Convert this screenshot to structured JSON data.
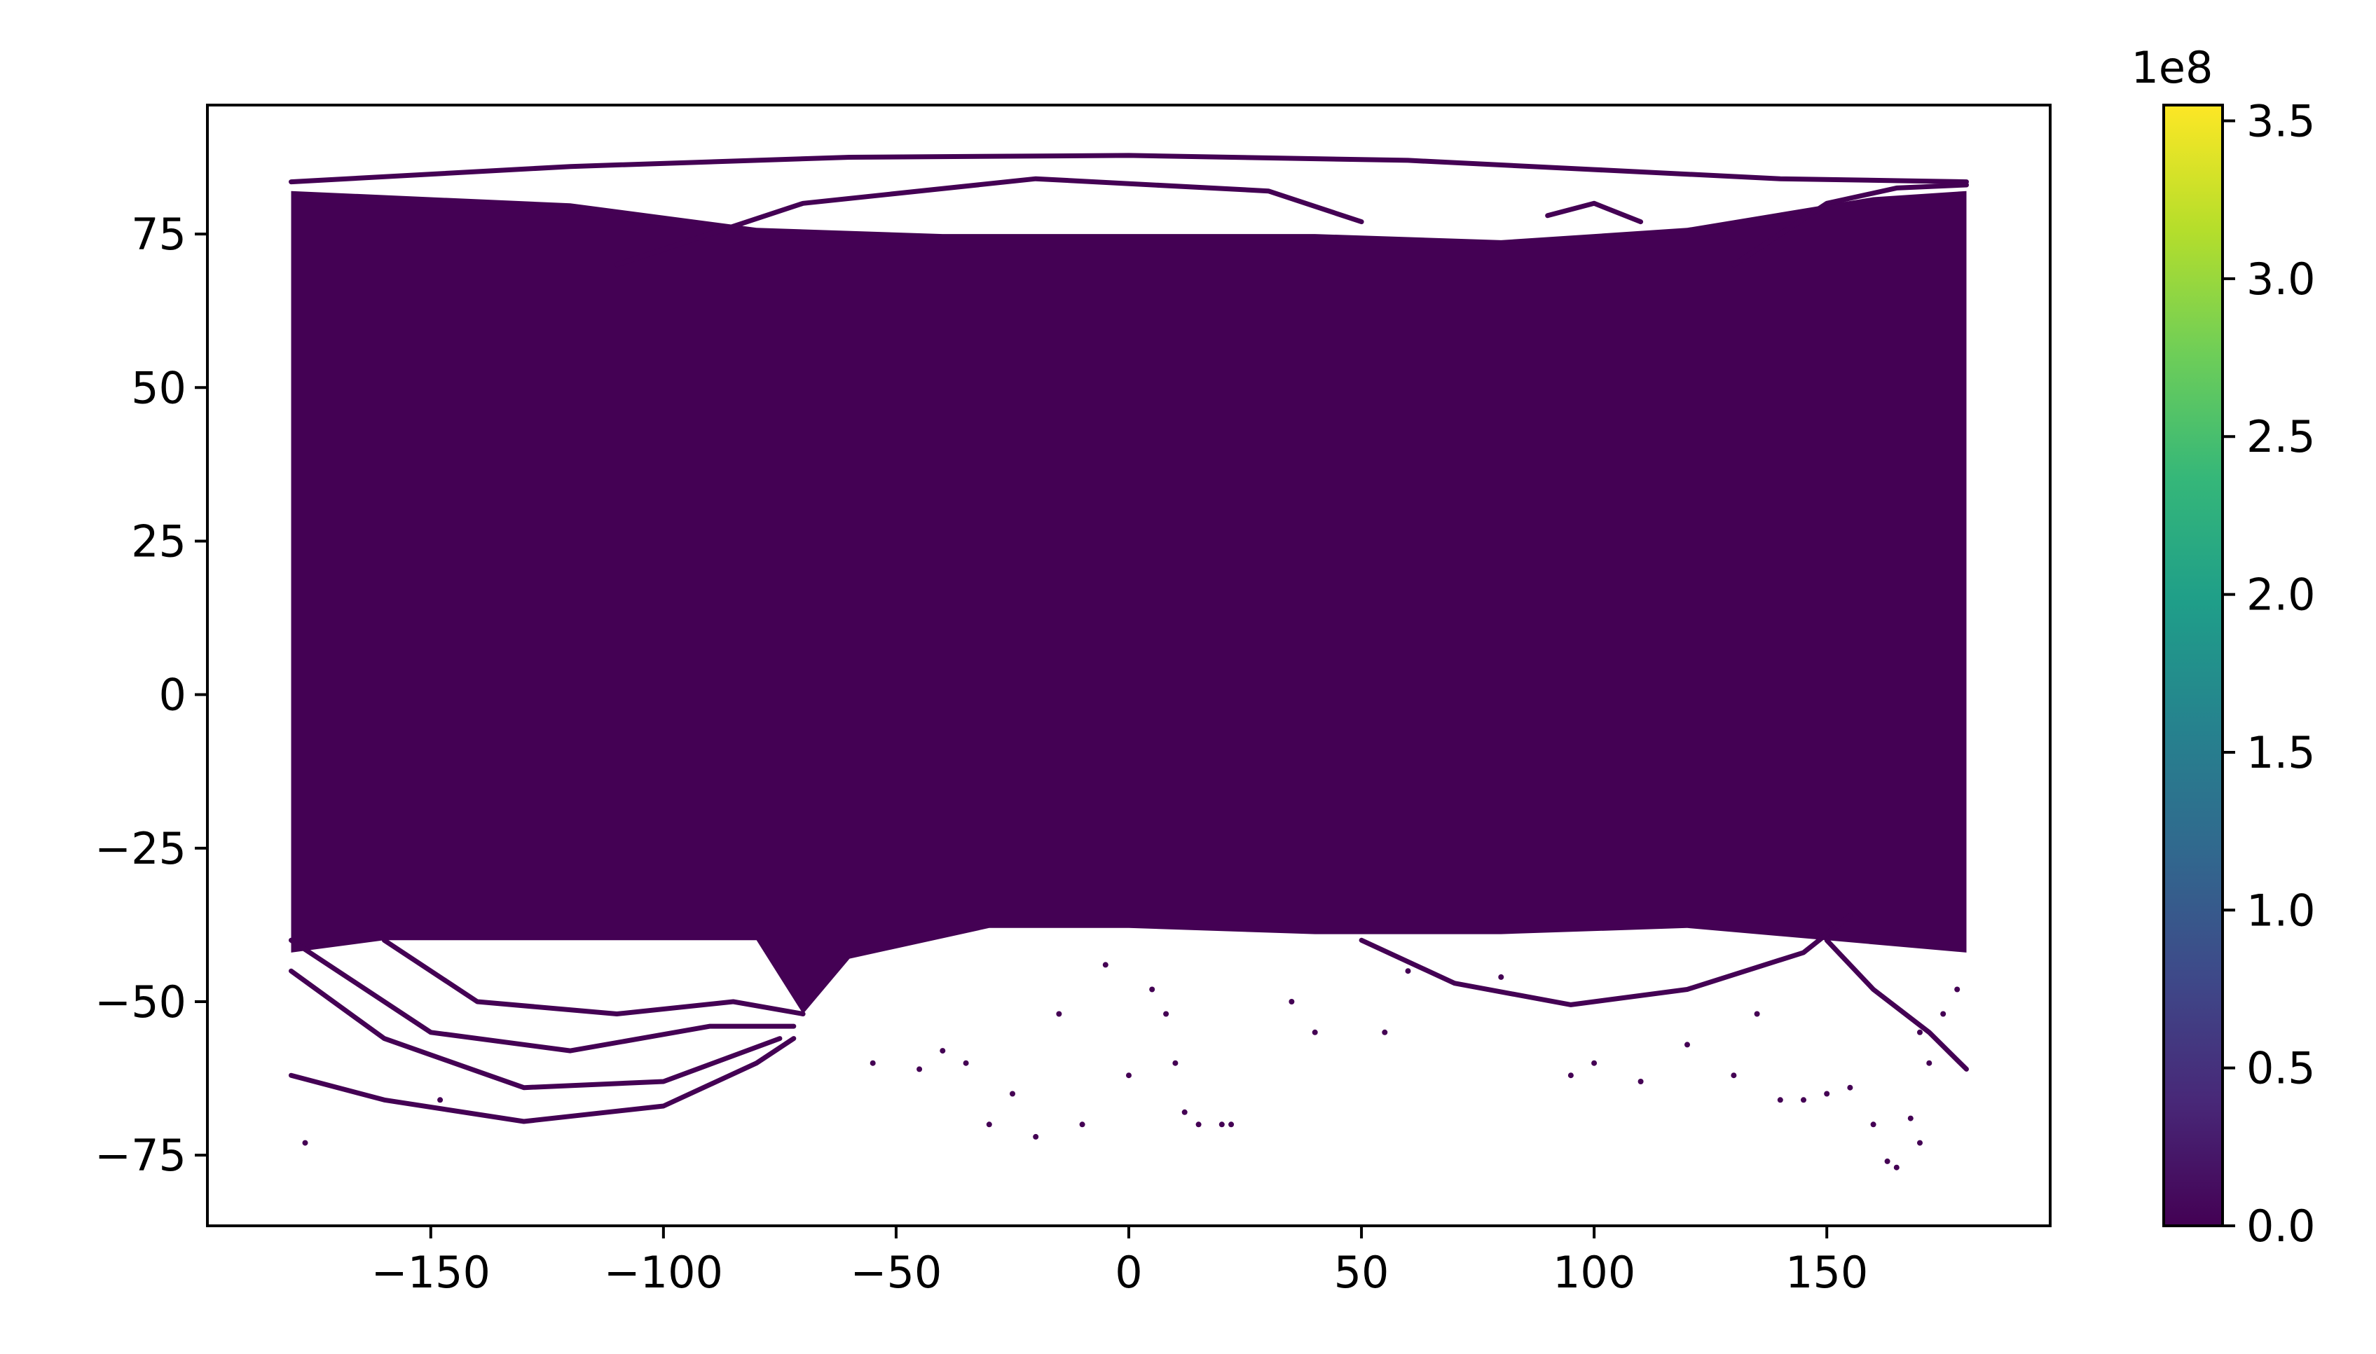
{
  "chart_data": {
    "type": "scatter",
    "title": "",
    "xlabel": "",
    "ylabel": "",
    "xlim": [
      -198,
      198
    ],
    "ylim": [
      -86.5,
      96
    ],
    "x_ticks": [
      -150,
      -100,
      -50,
      0,
      50,
      100,
      150
    ],
    "x_tick_labels": [
      "−150",
      "−100",
      "−50",
      "0",
      "50",
      "100",
      "150"
    ],
    "y_ticks": [
      -75,
      -50,
      -25,
      0,
      25,
      50,
      75
    ],
    "y_tick_labels": [
      "−75",
      "−50",
      "−25",
      "0",
      "25",
      "50",
      "75"
    ],
    "grid": false,
    "marker_color": "#440154",
    "dense_extent": {
      "x": [
        -180,
        180
      ],
      "y_top_edge": [
        [
          -180,
          82
        ],
        [
          -120,
          80
        ],
        [
          -80,
          76
        ],
        [
          -40,
          75
        ],
        [
          0,
          75
        ],
        [
          40,
          75
        ],
        [
          80,
          74
        ],
        [
          120,
          76
        ],
        [
          160,
          81
        ],
        [
          180,
          82
        ]
      ],
      "y_bottom_edge": [
        [
          180,
          -42
        ],
        [
          150,
          -40
        ],
        [
          120,
          -38
        ],
        [
          80,
          -39
        ],
        [
          40,
          -39
        ],
        [
          0,
          -38
        ],
        [
          -30,
          -38
        ],
        [
          -60,
          -43
        ],
        [
          -70,
          -52
        ],
        [
          -80,
          -40
        ],
        [
          -120,
          -40
        ],
        [
          -160,
          -40
        ],
        [
          -180,
          -42
        ]
      ]
    },
    "tracks": [
      [
        [
          -180,
          83.5
        ],
        [
          -120,
          86
        ],
        [
          -60,
          87.5
        ],
        [
          0,
          87.8
        ],
        [
          60,
          87
        ],
        [
          100,
          85.5
        ],
        [
          140,
          84
        ],
        [
          180,
          83.5
        ]
      ],
      [
        [
          -110,
          70
        ],
        [
          -70,
          80
        ],
        [
          -20,
          84
        ],
        [
          30,
          82
        ],
        [
          50,
          77
        ]
      ],
      [
        [
          -180,
          -62
        ],
        [
          -160,
          -66
        ],
        [
          -130,
          -69.5
        ],
        [
          -100,
          -67
        ],
        [
          -80,
          -60
        ],
        [
          -72,
          -56
        ]
      ],
      [
        [
          -180,
          -45
        ],
        [
          -160,
          -56
        ],
        [
          -130,
          -64
        ],
        [
          -100,
          -63
        ],
        [
          -75,
          -56
        ]
      ],
      [
        [
          -180,
          -40
        ],
        [
          -150,
          -55
        ],
        [
          -120,
          -58
        ],
        [
          -90,
          -54
        ],
        [
          -72,
          -54
        ]
      ],
      [
        [
          -160,
          -40
        ],
        [
          -140,
          -50
        ],
        [
          -110,
          -52
        ],
        [
          -85,
          -50
        ],
        [
          -70,
          -52
        ]
      ],
      [
        [
          50,
          -40
        ],
        [
          70,
          -47
        ],
        [
          95,
          -50.5
        ],
        [
          120,
          -48
        ],
        [
          145,
          -42
        ],
        [
          155,
          -36
        ]
      ],
      [
        [
          150,
          -40
        ],
        [
          160,
          -48
        ],
        [
          172,
          -55
        ],
        [
          180,
          -61
        ]
      ],
      [
        [
          130,
          70
        ],
        [
          150,
          80
        ],
        [
          165,
          82.5
        ],
        [
          180,
          83
        ]
      ],
      [
        [
          90,
          78
        ],
        [
          100,
          80
        ],
        [
          110,
          77
        ]
      ]
    ],
    "scatter_points": [
      [
        -177,
        -73
      ],
      [
        -148,
        -66
      ],
      [
        -20,
        -72
      ],
      [
        -10,
        -70
      ],
      [
        -25,
        -65
      ],
      [
        -45,
        -61
      ],
      [
        -55,
        -60
      ],
      [
        -30,
        -70
      ],
      [
        0,
        -62
      ],
      [
        10,
        -60
      ],
      [
        12,
        -68
      ],
      [
        15,
        -70
      ],
      [
        20,
        -70
      ],
      [
        22,
        -70
      ],
      [
        35,
        -50
      ],
      [
        40,
        -55
      ],
      [
        55,
        -55
      ],
      [
        95,
        -62
      ],
      [
        100,
        -60
      ],
      [
        110,
        -63
      ],
      [
        130,
        -62
      ],
      [
        140,
        -66
      ],
      [
        145,
        -66
      ],
      [
        150,
        -65
      ],
      [
        155,
        -64
      ],
      [
        160,
        -70
      ],
      [
        163,
        -76
      ],
      [
        165,
        -77
      ],
      [
        170,
        -73
      ],
      [
        168,
        -69
      ],
      [
        172,
        -60
      ],
      [
        175,
        -52
      ],
      [
        8,
        -52
      ],
      [
        5,
        -48
      ],
      [
        -5,
        -44
      ],
      [
        -15,
        -52
      ],
      [
        -35,
        -60
      ],
      [
        -40,
        -58
      ],
      [
        60,
        -45
      ],
      [
        80,
        -46
      ],
      [
        120,
        -57
      ],
      [
        135,
        -52
      ],
      [
        170,
        -55
      ],
      [
        178,
        -48
      ]
    ],
    "colorbar": {
      "colormap": "viridis",
      "range": [
        0,
        355000000
      ],
      "ticks": [
        0,
        50000000,
        100000000,
        150000000,
        200000000,
        250000000,
        300000000,
        350000000
      ],
      "tick_labels": [
        "0.0",
        "0.5",
        "1.0",
        "1.5",
        "2.0",
        "2.5",
        "3.0",
        "3.5"
      ],
      "offset_label": "1e8",
      "stops": [
        "#440154",
        "#482878",
        "#3e4989",
        "#31688e",
        "#26828e",
        "#1f9e89",
        "#35b779",
        "#6ece58",
        "#b5de2b",
        "#fde725"
      ]
    }
  }
}
